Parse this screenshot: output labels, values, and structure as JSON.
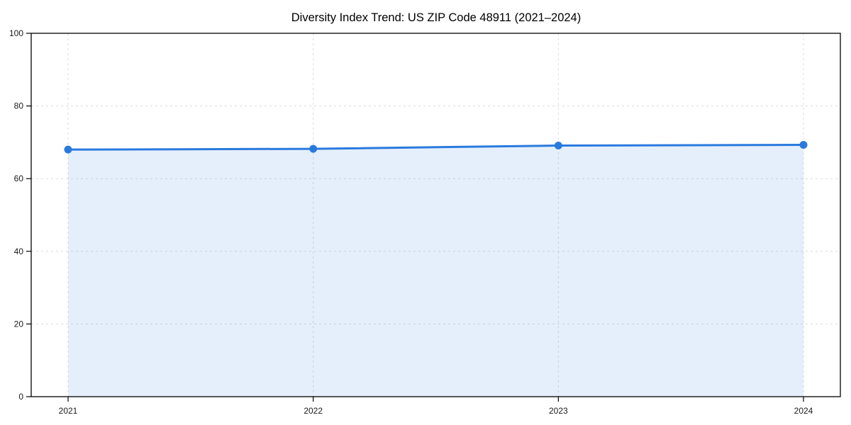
{
  "chart_data": {
    "type": "area",
    "title": "Diversity Index Trend: US ZIP Code 48911 (2021–2024)",
    "categories": [
      "2021",
      "2022",
      "2023",
      "2024"
    ],
    "values": [
      68.0,
      68.2,
      69.1,
      69.3
    ],
    "xlabel": "",
    "ylabel": "",
    "ylim": [
      0,
      100
    ],
    "yticks": [
      0,
      20,
      40,
      60,
      80,
      100
    ],
    "grid": true,
    "grid_style": "dashed",
    "legend": "none",
    "colors": {
      "line": "#2a7ade",
      "marker": "#2a7ade",
      "fill": "rgba(42,122,222,0.12)",
      "grid": "#dcdcdc",
      "axis": "#000000",
      "tick_label": "#1a1a1a",
      "title": "#000000",
      "background": "#ffffff"
    }
  }
}
